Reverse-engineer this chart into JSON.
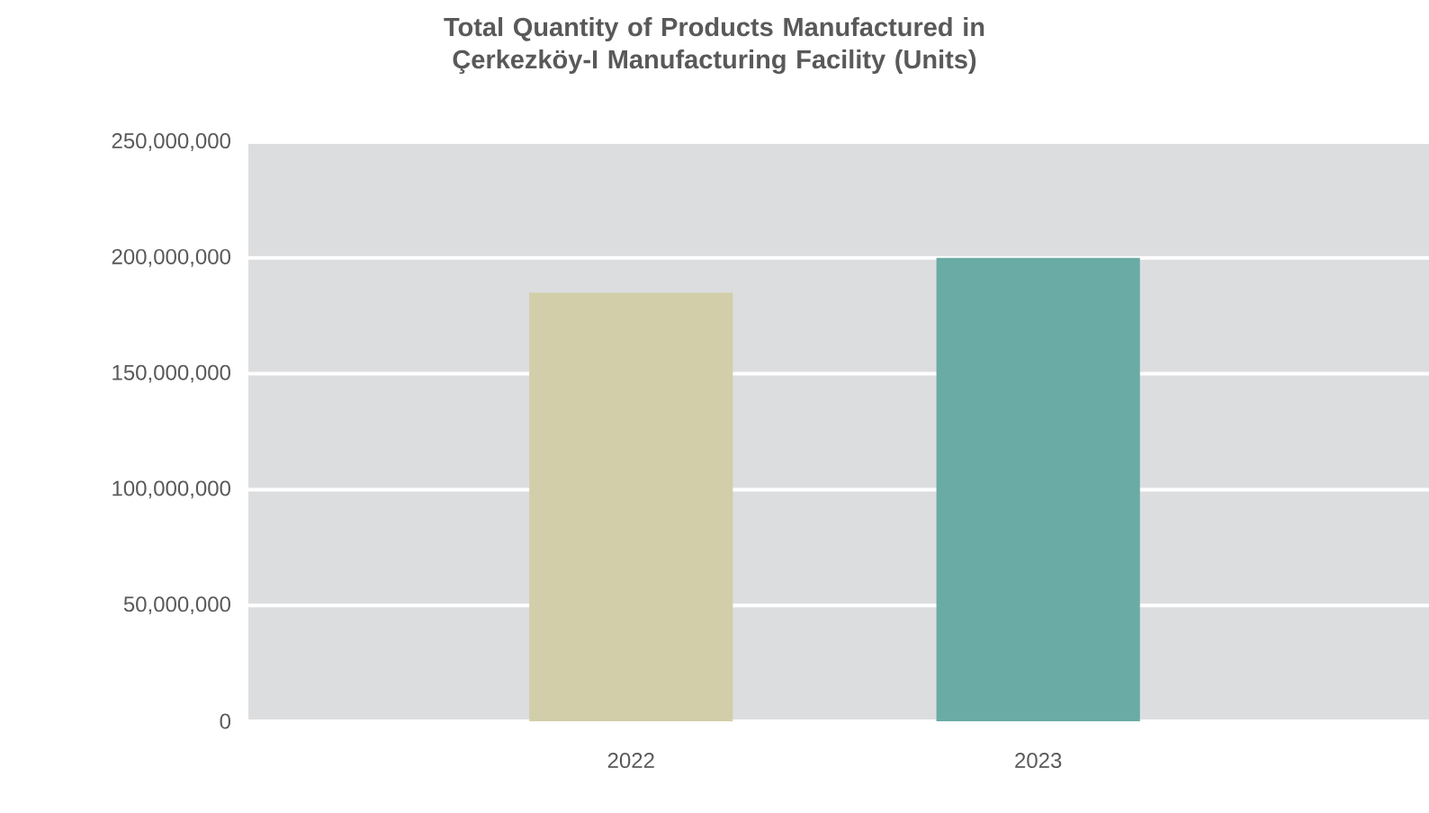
{
  "chart_data": {
    "type": "bar",
    "title": "Total Quantity of Products Manufactured in Çerkezköy-I Manufacturing Facility (Units)",
    "categories": [
      "2022",
      "2023"
    ],
    "values": [
      185000000,
      200000000
    ],
    "colors": [
      "#d1cea9",
      "#6aaba5"
    ],
    "ylim": [
      0,
      250000000
    ],
    "yticks": [
      0,
      {
        "value": 50000000,
        "label": "50,000,000"
      },
      {
        "value": 100000000,
        "label": "100,000,000"
      },
      {
        "value": 150000000,
        "label": "150,000,000"
      },
      {
        "value": 200000000,
        "label": "200,000,000"
      },
      {
        "value": 250000000,
        "label": "250,000,000"
      }
    ],
    "grid": "y"
  }
}
